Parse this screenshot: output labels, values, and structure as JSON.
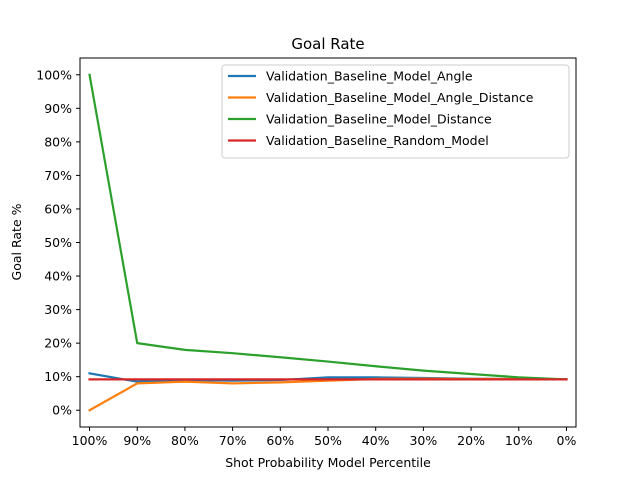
{
  "chart_data": {
    "type": "line",
    "title": "Goal Rate",
    "xlabel": "Shot Probability Model Percentile",
    "ylabel": "Goal Rate %",
    "x": [
      100,
      90,
      80,
      70,
      60,
      50,
      40,
      30,
      20,
      10,
      0
    ],
    "xlim": [
      100,
      0
    ],
    "x_tick_labels": [
      "100%",
      "90%",
      "80%",
      "70%",
      "60%",
      "50%",
      "40%",
      "30%",
      "20%",
      "10%",
      "0%"
    ],
    "ylim": [
      -5,
      105
    ],
    "y_ticks": [
      0,
      10,
      20,
      30,
      40,
      50,
      60,
      70,
      80,
      90,
      100
    ],
    "y_tick_labels": [
      "0%",
      "10%",
      "20%",
      "30%",
      "40%",
      "50%",
      "60%",
      "70%",
      "80%",
      "90%",
      "100%"
    ],
    "grid": false,
    "legend_position": "top-right",
    "series": [
      {
        "name": "Validation_Baseline_Model_Angle",
        "color": "#1f77b4",
        "values": [
          11,
          8.5,
          9,
          8.8,
          9,
          9.8,
          9.8,
          9.6,
          9.4,
          9.3,
          9.2
        ]
      },
      {
        "name": "Validation_Baseline_Model_Angle_Distance",
        "color": "#ff7f0e",
        "values": [
          0,
          8,
          8.5,
          8,
          8.3,
          8.8,
          9.3,
          9.4,
          9.3,
          9.3,
          9.2
        ]
      },
      {
        "name": "Validation_Baseline_Model_Distance",
        "color": "#2ca02c",
        "values": [
          100,
          20,
          18,
          17,
          15.8,
          14.5,
          13.1,
          11.8,
          10.8,
          9.8,
          9.2
        ]
      },
      {
        "name": "Validation_Baseline_Random_Model",
        "color": "#d62728",
        "values": [
          9.2,
          9.2,
          9.2,
          9.2,
          9.2,
          9.2,
          9.2,
          9.2,
          9.2,
          9.2,
          9.2
        ]
      }
    ]
  }
}
